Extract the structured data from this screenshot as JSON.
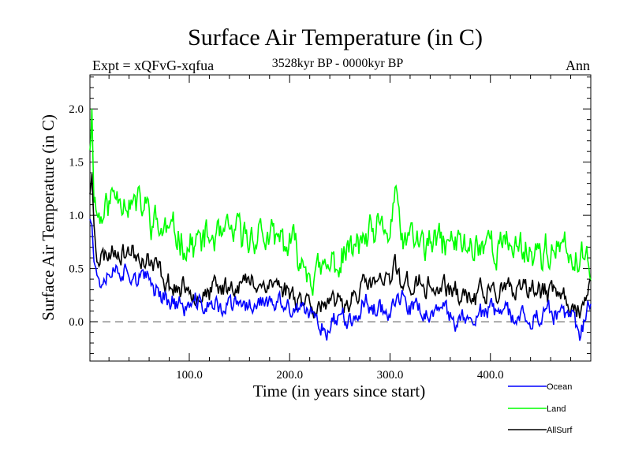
{
  "chart_data": {
    "type": "line",
    "title": "Surface Air Temperature (in C)",
    "subtitle": "3528kyr BP - 0000kyr BP",
    "experiment_label": "Expt = xQFvG-xqfua",
    "season_label": "Ann",
    "xlabel": "Time (in years since start)",
    "ylabel": "Surface Air Temperature (in C)",
    "xlim": [
      1,
      500
    ],
    "ylim": [
      -0.37,
      2.32
    ],
    "x_ticks": [
      {
        "value": 100,
        "label": "100.0"
      },
      {
        "value": 200,
        "label": "200.0"
      },
      {
        "value": 300,
        "label": "300.0"
      },
      {
        "value": 400,
        "label": "400.0"
      }
    ],
    "y_ticks": [
      {
        "value": 0.0,
        "label": "0.0"
      },
      {
        "value": 0.5,
        "label": "0.5"
      },
      {
        "value": 1.0,
        "label": "1.0"
      },
      {
        "value": 1.5,
        "label": "1.5"
      },
      {
        "value": 2.0,
        "label": "2.0"
      }
    ],
    "zero_line": 0.0,
    "legend_position": "below-right",
    "series": [
      {
        "name": "Land",
        "color": "#00ff00",
        "anchors_x": [
          1,
          3,
          5,
          8,
          12,
          20,
          30,
          40,
          50,
          60,
          70,
          80,
          90,
          100,
          120,
          140,
          160,
          170,
          180,
          200,
          220,
          230,
          240,
          250,
          260,
          280,
          290,
          300,
          305,
          310,
          320,
          340,
          360,
          380,
          400,
          420,
          440,
          460,
          480,
          490,
          500
        ],
        "anchors_y": [
          1.7,
          2.0,
          1.3,
          1.05,
          1.0,
          1.15,
          1.25,
          1.15,
          1.1,
          1.05,
          0.9,
          0.85,
          0.8,
          0.75,
          0.75,
          0.8,
          0.8,
          0.85,
          0.75,
          0.7,
          0.55,
          0.45,
          0.5,
          0.55,
          0.65,
          0.75,
          0.8,
          0.8,
          1.25,
          0.8,
          0.75,
          0.7,
          0.75,
          0.7,
          0.75,
          0.7,
          0.7,
          0.65,
          0.6,
          0.55,
          0.6
        ],
        "amplitude": 0.17,
        "seed": 11
      },
      {
        "name": "AllSurf",
        "color": "#000000",
        "anchors_x": [
          1,
          3,
          5,
          8,
          12,
          20,
          30,
          40,
          50,
          60,
          70,
          80,
          90,
          100,
          120,
          140,
          160,
          170,
          180,
          200,
          220,
          230,
          240,
          250,
          260,
          280,
          290,
          300,
          305,
          310,
          320,
          340,
          360,
          380,
          400,
          420,
          440,
          460,
          480,
          490,
          500
        ],
        "anchors_y": [
          1.25,
          1.35,
          0.95,
          0.65,
          0.6,
          0.65,
          0.7,
          0.65,
          0.6,
          0.55,
          0.45,
          0.35,
          0.3,
          0.3,
          0.3,
          0.35,
          0.35,
          0.4,
          0.35,
          0.3,
          0.2,
          0.15,
          0.1,
          0.2,
          0.25,
          0.35,
          0.35,
          0.35,
          0.55,
          0.4,
          0.35,
          0.3,
          0.3,
          0.25,
          0.3,
          0.25,
          0.3,
          0.25,
          0.2,
          0.1,
          0.3
        ],
        "amplitude": 0.11,
        "seed": 23
      },
      {
        "name": "Ocean",
        "color": "#0000ff",
        "anchors_x": [
          1,
          3,
          5,
          8,
          12,
          20,
          30,
          40,
          50,
          60,
          70,
          80,
          90,
          100,
          120,
          140,
          160,
          170,
          180,
          200,
          220,
          230,
          240,
          250,
          260,
          280,
          290,
          300,
          305,
          310,
          320,
          340,
          360,
          380,
          400,
          420,
          440,
          460,
          480,
          490,
          500
        ],
        "anchors_y": [
          1.0,
          1.05,
          0.65,
          0.45,
          0.4,
          0.45,
          0.5,
          0.45,
          0.4,
          0.35,
          0.3,
          0.2,
          0.15,
          0.15,
          0.15,
          0.15,
          0.15,
          0.2,
          0.15,
          0.1,
          0.05,
          0.0,
          -0.05,
          0.05,
          0.1,
          0.15,
          0.15,
          0.1,
          0.2,
          0.15,
          0.1,
          0.05,
          0.05,
          0.05,
          0.1,
          0.05,
          0.05,
          0.05,
          0.0,
          -0.1,
          0.2
        ],
        "amplitude": 0.1,
        "seed": 37
      }
    ],
    "legend": [
      {
        "label": "Ocean",
        "color": "#0000ff"
      },
      {
        "label": "Land",
        "color": "#00ff00"
      },
      {
        "label": "AllSurf",
        "color": "#000000"
      }
    ]
  }
}
